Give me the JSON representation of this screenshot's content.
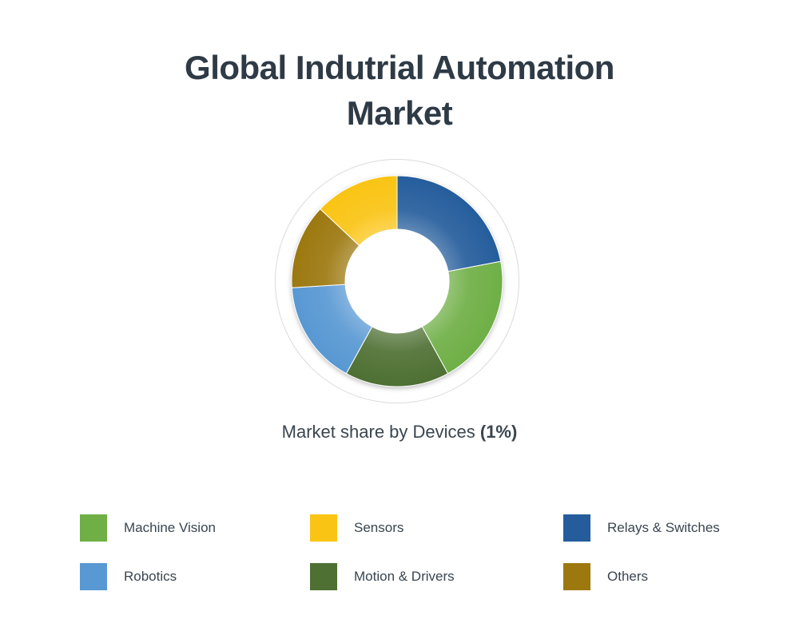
{
  "page": {
    "background": "#ffffff"
  },
  "title": {
    "text": "Global Indutrial Automation Market"
  },
  "subtitle": {
    "prefix": "Market share by Devices ",
    "bold": "(1%)"
  },
  "chart_data": {
    "type": "pie",
    "subtype": "donut",
    "title": "Global Indutrial Automation Market",
    "caption": "Market share by Devices (1%)",
    "unit": "percent",
    "start_angle_deg": 0,
    "direction": "clockwise",
    "inner_radius_ratio": 0.49,
    "legend_position": "bottom",
    "segments": [
      {
        "label": "Relays & Switches",
        "value": 22,
        "color": "#255D9C"
      },
      {
        "label": "Machine Vision",
        "value": 20,
        "color": "#6FAF46"
      },
      {
        "label": "Motion & Drivers",
        "value": 16,
        "color": "#4E7033"
      },
      {
        "label": "Robotics",
        "value": 16,
        "color": "#5898D3"
      },
      {
        "label": "Others",
        "value": 13,
        "color": "#9C780F"
      },
      {
        "label": "Sensors",
        "value": 13,
        "color": "#FAC414"
      }
    ]
  },
  "legend": {
    "items": [
      {
        "label": "Machine Vision",
        "color": "#6FAF46"
      },
      {
        "label": "Sensors",
        "color": "#FAC414"
      },
      {
        "label": "Relays & Switches",
        "color": "#255D9C"
      },
      {
        "label": "Robotics",
        "color": "#5898D3"
      },
      {
        "label": "Motion & Drivers",
        "color": "#4E7033"
      },
      {
        "label": "Others",
        "color": "#9C780F"
      }
    ]
  }
}
